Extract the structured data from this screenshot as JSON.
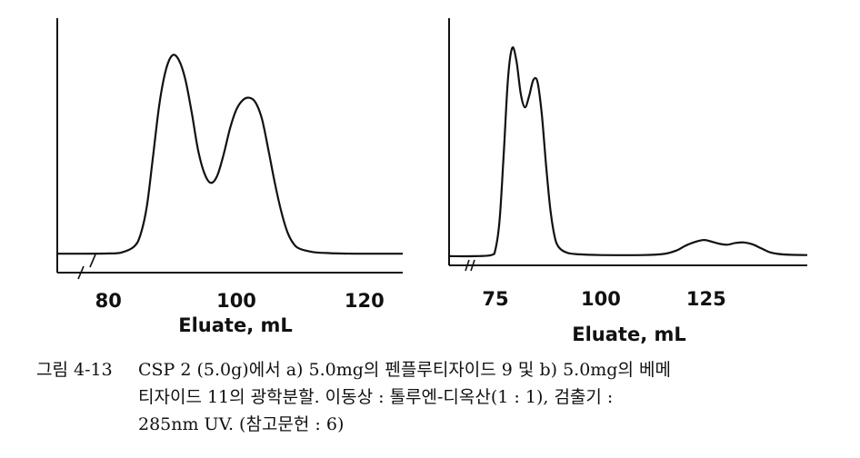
{
  "chart_data": [
    {
      "type": "line",
      "id": "a",
      "xlabel": "Eluate, mL",
      "xlim": [
        72,
        126
      ],
      "ylim": [
        0,
        1
      ],
      "xticks": [
        80,
        100,
        120
      ],
      "axis_break": true,
      "x": [
        72,
        76,
        80,
        82,
        84,
        85,
        86,
        87,
        88,
        89,
        90,
        91,
        92,
        93,
        94,
        95,
        96,
        97,
        98,
        99,
        100,
        101,
        102,
        103,
        104,
        105,
        106,
        107,
        108,
        109,
        110,
        112,
        114,
        116,
        120,
        126
      ],
      "y": [
        0.08,
        0.08,
        0.081,
        0.085,
        0.11,
        0.16,
        0.28,
        0.5,
        0.72,
        0.86,
        0.92,
        0.9,
        0.82,
        0.68,
        0.52,
        0.42,
        0.38,
        0.41,
        0.5,
        0.61,
        0.69,
        0.73,
        0.74,
        0.72,
        0.65,
        0.52,
        0.38,
        0.26,
        0.17,
        0.12,
        0.1,
        0.087,
        0.083,
        0.081,
        0.08,
        0.08
      ]
    },
    {
      "type": "line",
      "id": "b",
      "xlabel": "Eluate, mL",
      "xlim": [
        64,
        149
      ],
      "ylim": [
        0,
        1
      ],
      "xticks": [
        75,
        100,
        125
      ],
      "axis_break": true,
      "x": [
        64,
        70,
        74,
        75,
        76,
        77,
        78,
        79,
        80,
        81,
        82,
        83,
        84,
        85,
        86,
        87,
        88,
        89,
        90,
        92,
        95,
        100,
        110,
        115,
        118,
        120,
        122,
        124,
        125,
        126,
        128,
        130,
        132,
        134,
        136,
        138,
        140,
        142,
        145,
        149
      ],
      "y": [
        0.04,
        0.04,
        0.045,
        0.07,
        0.2,
        0.5,
        0.82,
        0.95,
        0.89,
        0.75,
        0.69,
        0.74,
        0.81,
        0.8,
        0.66,
        0.44,
        0.25,
        0.13,
        0.08,
        0.055,
        0.048,
        0.045,
        0.045,
        0.05,
        0.065,
        0.085,
        0.1,
        0.11,
        0.11,
        0.105,
        0.095,
        0.09,
        0.098,
        0.1,
        0.092,
        0.075,
        0.058,
        0.05,
        0.046,
        0.045
      ]
    }
  ],
  "caption": {
    "label": "그림 4-13",
    "lines": [
      "CSP 2 (5.0g)에서 a) 5.0mg의 펜플루티자이드 9 및 b) 5.0mg의 베메",
      "티자이드 11의 광학분할. 이동상 : 톨루엔-디옥산(1 : 1), 검출기 :",
      "285nm UV. (참고문헌 : 6)"
    ]
  }
}
